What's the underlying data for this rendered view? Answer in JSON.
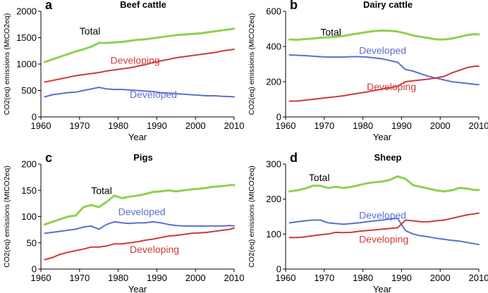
{
  "colors": {
    "Total": "#8fd14f",
    "Developing": "#cd3b3b",
    "Developed": "#5c6fcf"
  },
  "chart_data": [
    {
      "type": "line",
      "letter": "a",
      "title": "Beef cattle",
      "xlabel": "Year",
      "ylabel": "CO2(eq) emissions (MtCO2eq)",
      "xlim": [
        1960,
        2010
      ],
      "ylim": [
        0,
        2000
      ],
      "xticks": [
        1960,
        1970,
        1980,
        1990,
        2000,
        2010
      ],
      "yticks": [
        0,
        500,
        1000,
        1500,
        2000
      ],
      "x": [
        1961,
        1963,
        1965,
        1967,
        1969,
        1971,
        1973,
        1975,
        1977,
        1979,
        1981,
        1983,
        1985,
        1987,
        1989,
        1991,
        1993,
        1995,
        1997,
        1999,
        2001,
        2003,
        2005,
        2007,
        2009,
        2010
      ],
      "series": [
        {
          "name": "Total",
          "values": [
            1040,
            1090,
            1140,
            1190,
            1240,
            1280,
            1330,
            1400,
            1400,
            1410,
            1420,
            1440,
            1460,
            1470,
            1490,
            1510,
            1530,
            1550,
            1560,
            1570,
            1580,
            1600,
            1620,
            1640,
            1660,
            1670
          ]
        },
        {
          "name": "Developing",
          "values": [
            660,
            690,
            720,
            750,
            780,
            800,
            820,
            840,
            870,
            890,
            910,
            930,
            960,
            990,
            1030,
            1060,
            1090,
            1120,
            1140,
            1160,
            1180,
            1200,
            1220,
            1250,
            1270,
            1280
          ]
        },
        {
          "name": "Developed",
          "values": [
            380,
            420,
            440,
            460,
            470,
            500,
            530,
            560,
            530,
            520,
            520,
            510,
            500,
            490,
            480,
            460,
            450,
            440,
            430,
            420,
            410,
            400,
            400,
            390,
            385,
            380
          ]
        }
      ]
    },
    {
      "type": "line",
      "letter": "b",
      "title": "Dairy cattle",
      "xlabel": "Year",
      "ylabel": "CO2(eq) emissions (MtCO2eq)",
      "xlim": [
        1960,
        2010
      ],
      "ylim": [
        0,
        600
      ],
      "xticks": [
        1960,
        1970,
        1980,
        1990,
        2000,
        2010
      ],
      "yticks": [
        0,
        200,
        400,
        600
      ],
      "x": [
        1961,
        1963,
        1965,
        1967,
        1969,
        1971,
        1973,
        1975,
        1977,
        1979,
        1981,
        1983,
        1985,
        1987,
        1989,
        1991,
        1993,
        1995,
        1997,
        1999,
        2001,
        2003,
        2005,
        2007,
        2009,
        2010
      ],
      "series": [
        {
          "name": "Total",
          "values": [
            440,
            438,
            442,
            445,
            450,
            452,
            455,
            460,
            468,
            475,
            482,
            488,
            490,
            489,
            485,
            475,
            462,
            455,
            448,
            440,
            440,
            445,
            455,
            465,
            470,
            468
          ]
        },
        {
          "name": "Developed",
          "values": [
            352,
            350,
            348,
            345,
            342,
            340,
            340,
            340,
            342,
            342,
            340,
            335,
            330,
            320,
            310,
            270,
            260,
            245,
            230,
            220,
            210,
            200,
            195,
            190,
            185,
            183
          ]
        },
        {
          "name": "Developing",
          "values": [
            90,
            90,
            95,
            100,
            105,
            110,
            115,
            120,
            128,
            135,
            142,
            150,
            158,
            165,
            175,
            200,
            205,
            210,
            215,
            222,
            230,
            250,
            265,
            280,
            288,
            288
          ]
        }
      ]
    },
    {
      "type": "line",
      "letter": "c",
      "title": "Pigs",
      "xlabel": "Year",
      "ylabel": "CO2(eq) emissions (MtCO2eq)",
      "xlim": [
        1960,
        2010
      ],
      "ylim": [
        0,
        200
      ],
      "xticks": [
        1960,
        1970,
        1980,
        1990,
        2000,
        2010
      ],
      "yticks": [
        0,
        50,
        100,
        150,
        200
      ],
      "x": [
        1961,
        1963,
        1965,
        1967,
        1969,
        1971,
        1973,
        1975,
        1977,
        1979,
        1981,
        1983,
        1985,
        1987,
        1989,
        1991,
        1993,
        1995,
        1997,
        1999,
        2001,
        2003,
        2005,
        2007,
        2009,
        2010
      ],
      "series": [
        {
          "name": "Total",
          "values": [
            85,
            90,
            95,
            100,
            102,
            118,
            122,
            118,
            128,
            140,
            135,
            138,
            140,
            143,
            147,
            148,
            150,
            148,
            150,
            152,
            153,
            155,
            157,
            158,
            160,
            160
          ]
        },
        {
          "name": "Developed",
          "values": [
            68,
            70,
            72,
            74,
            76,
            80,
            82,
            76,
            85,
            90,
            88,
            87,
            88,
            88,
            90,
            88,
            85,
            83,
            82,
            82,
            82,
            82,
            82,
            82,
            83,
            82
          ]
        },
        {
          "name": "Developing",
          "values": [
            18,
            22,
            28,
            32,
            35,
            38,
            42,
            42,
            44,
            48,
            48,
            50,
            52,
            55,
            57,
            60,
            63,
            64,
            66,
            68,
            69,
            70,
            72,
            74,
            76,
            78
          ]
        }
      ]
    },
    {
      "type": "line",
      "letter": "d",
      "title": "Sheep",
      "xlabel": "Year",
      "ylabel": "CO2(eq) emissions (MtCO2eq)",
      "xlim": [
        1960,
        2010
      ],
      "ylim": [
        0,
        300
      ],
      "xticks": [
        1960,
        1970,
        1980,
        1990,
        2000,
        2010
      ],
      "yticks": [
        0,
        100,
        200,
        300
      ],
      "x": [
        1961,
        1963,
        1965,
        1967,
        1969,
        1971,
        1973,
        1975,
        1977,
        1979,
        1981,
        1983,
        1985,
        1987,
        1989,
        1991,
        1993,
        1995,
        1997,
        1999,
        2001,
        2003,
        2005,
        2007,
        2009,
        2010
      ],
      "series": [
        {
          "name": "Total",
          "values": [
            222,
            225,
            230,
            238,
            238,
            232,
            235,
            232,
            235,
            240,
            245,
            248,
            250,
            255,
            265,
            258,
            240,
            235,
            230,
            225,
            222,
            225,
            232,
            230,
            226,
            226
          ]
        },
        {
          "name": "Developed",
          "values": [
            132,
            135,
            138,
            140,
            140,
            132,
            130,
            128,
            130,
            132,
            135,
            138,
            140,
            143,
            145,
            110,
            100,
            95,
            92,
            88,
            85,
            82,
            80,
            76,
            72,
            70
          ]
        },
        {
          "name": "Developing",
          "values": [
            90,
            90,
            92,
            95,
            98,
            100,
            105,
            104,
            105,
            108,
            110,
            112,
            114,
            116,
            118,
            140,
            138,
            135,
            135,
            138,
            140,
            145,
            150,
            155,
            158,
            160
          ]
        }
      ]
    }
  ]
}
